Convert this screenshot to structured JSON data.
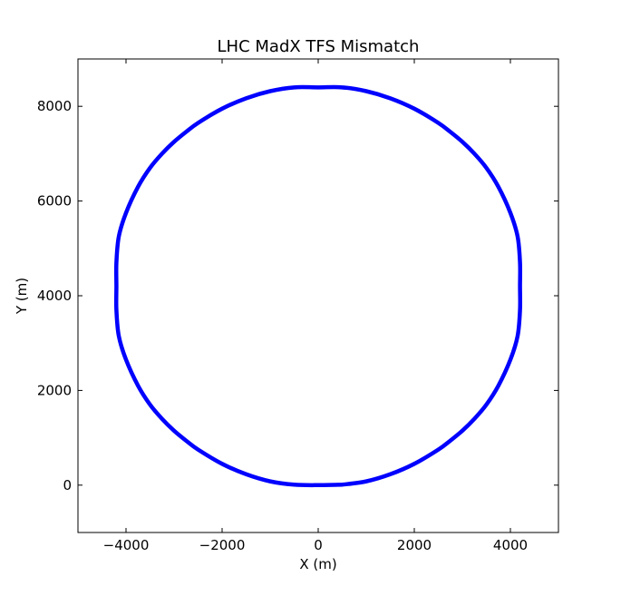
{
  "chart_data": {
    "type": "line",
    "title": "LHC MadX TFS Mismatch",
    "xlabel": "X (m)",
    "ylabel": "Y (m)",
    "xlim": [
      -5000,
      5000
    ],
    "ylim": [
      -1000,
      9000
    ],
    "xticks": [
      -4000,
      -2000,
      0,
      2000,
      4000
    ],
    "yticks": [
      0,
      2000,
      4000,
      6000,
      8000
    ],
    "xtick_labels": [
      "−4000",
      "−2000",
      "0",
      "2000",
      "4000"
    ],
    "ytick_labels": [
      "0",
      "2000",
      "4000",
      "6000",
      "8000"
    ],
    "grid": false,
    "legend": "none",
    "series": [
      {
        "color": "#0000ff",
        "x": [
          500,
          1000,
          1500,
          2000,
          2500,
          2750,
          3000,
          3250,
          3500,
          3750,
          4000,
          4150,
          4200,
          4200,
          4200,
          4150,
          4000,
          3750,
          3500,
          3250,
          3000,
          2750,
          2500,
          2000,
          1500,
          1000,
          500,
          0,
          -500,
          -1000,
          -1500,
          -2000,
          -2500,
          -2750,
          -3000,
          -3250,
          -3500,
          -3750,
          -4000,
          -4150,
          -4200,
          -4200,
          -4200,
          -4150,
          -4000,
          -3750,
          -3500,
          -3250,
          -3000,
          -2750,
          -2500,
          -2000,
          -1500,
          -1000,
          -500,
          0,
          500
        ],
        "y": [
          10,
          80,
          230,
          450,
          750,
          940,
          1150,
          1400,
          1700,
          2100,
          2650,
          3150,
          3700,
          4200,
          4700,
          5250,
          5750,
          6300,
          6700,
          7000,
          7250,
          7460,
          7650,
          7950,
          8170,
          8320,
          8400,
          8400,
          8400,
          8320,
          8170,
          7950,
          7650,
          7460,
          7250,
          7000,
          6700,
          6300,
          5750,
          5250,
          4700,
          4200,
          3700,
          3150,
          2650,
          2100,
          1700,
          1400,
          1150,
          940,
          750,
          450,
          230,
          80,
          10,
          0,
          10
        ]
      }
    ]
  }
}
